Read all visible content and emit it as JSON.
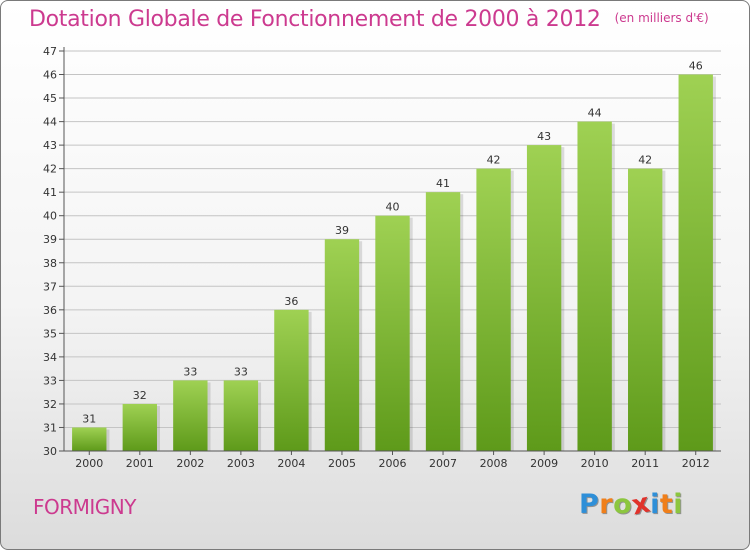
{
  "header": {
    "title": "Dotation Globale de Fonctionnement de 2000 à 2012",
    "unit": "(en milliers d'€)"
  },
  "footer": {
    "commune": "FORMIGNY",
    "logo_letters": [
      "P",
      "r",
      "o",
      "x",
      "i",
      "t",
      "i"
    ],
    "logo_colors": [
      "#2e8fd8",
      "#f07f1a",
      "#8cc63f",
      "#e0322b",
      "#2e8fd8",
      "#f07f1a",
      "#8cc63f"
    ]
  },
  "colors": {
    "bar_top": "#9fd153",
    "bar_bottom": "#5e9a1a",
    "title": "#cc3a8f",
    "grid": "#c4c4c4"
  },
  "chart_data": {
    "type": "bar",
    "title": "Dotation Globale de Fonctionnement de 2000 à 2012",
    "subtitle": "(en milliers d'€)",
    "xlabel": "",
    "ylabel": "",
    "categories": [
      "2000",
      "2001",
      "2002",
      "2003",
      "2004",
      "2005",
      "2006",
      "2007",
      "2008",
      "2009",
      "2010",
      "2011",
      "2012"
    ],
    "values": [
      31,
      32,
      33,
      33,
      36,
      39,
      40,
      41,
      42,
      43,
      44,
      42,
      46
    ],
    "ylim": [
      30,
      47
    ],
    "yticks": [
      30,
      31,
      32,
      33,
      34,
      35,
      36,
      37,
      38,
      39,
      40,
      41,
      42,
      43,
      44,
      45,
      46,
      47
    ],
    "grid": true,
    "legend": "none"
  }
}
